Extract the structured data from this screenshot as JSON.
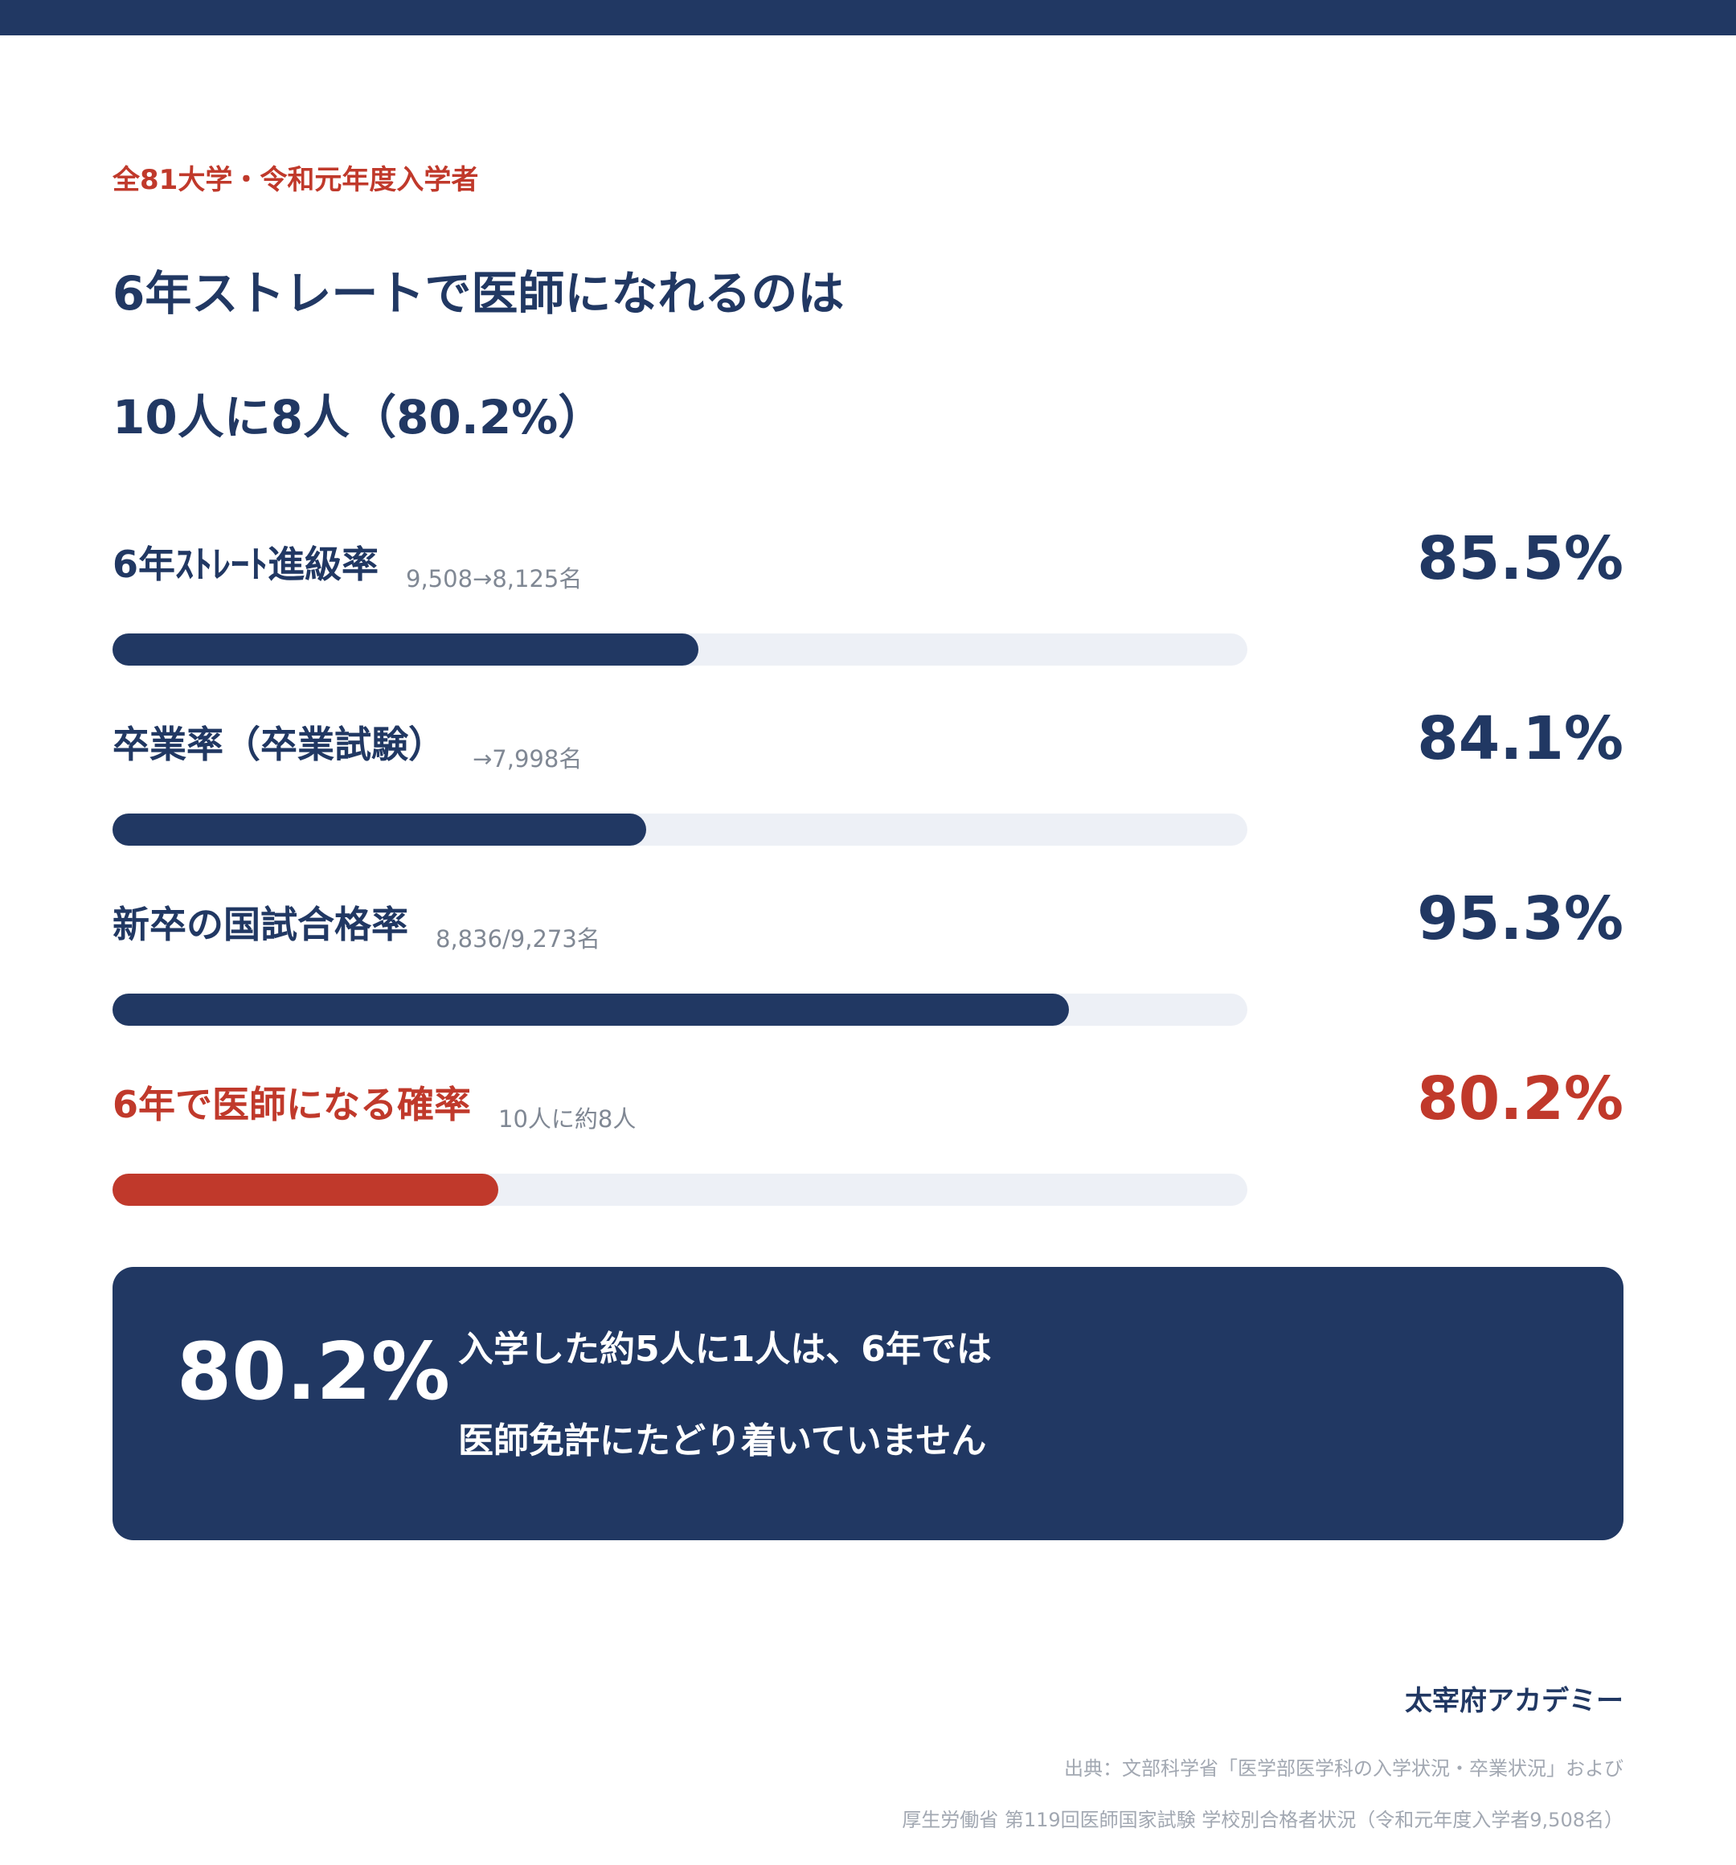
{
  "eyebrow": "全81大学・令和元年度入学者",
  "headline": {
    "line1": "6年ストレートで医師になれるのは",
    "line2": "10人に8人（80.2%）"
  },
  "chart_data": {
    "type": "bar",
    "orientation": "horizontal",
    "categories": [
      "6年ｽﾄﾚｰﾄ進級率",
      "卒業率（卒業試験）",
      "新卒の国試合格率",
      "6年で医師になる確率"
    ],
    "notes": [
      "9,508→8,125名",
      "→7,998名",
      "8,836/9,273名",
      "10人に約8人"
    ],
    "values": [
      85.5,
      84.1,
      95.3,
      80.2
    ],
    "value_labels": [
      "85.5%",
      "84.1%",
      "95.3%",
      "80.2%"
    ],
    "xlim": [
      0,
      100
    ],
    "bar_fill_fraction": [
      0.516,
      0.47,
      0.843,
      0.34
    ],
    "highlight_index": 3,
    "colors": {
      "primary": "#213863",
      "accent": "#c0392b",
      "track": "#edf0f6"
    },
    "title": "",
    "xlabel": "",
    "ylabel": ""
  },
  "callout": {
    "value": "80.2%",
    "line1": "入学した約5人に1人は、6年では",
    "line2": "医師免許にたどり着いていません"
  },
  "brand": "太宰府アカデミー",
  "source": {
    "line1": "出典：文部科学省「医学部医学科の入学状況・卒業状況」および",
    "line2": "厚生労働省 第119回医師国家試験 学校別合格者状況（令和元年度入学者9,508名）"
  }
}
